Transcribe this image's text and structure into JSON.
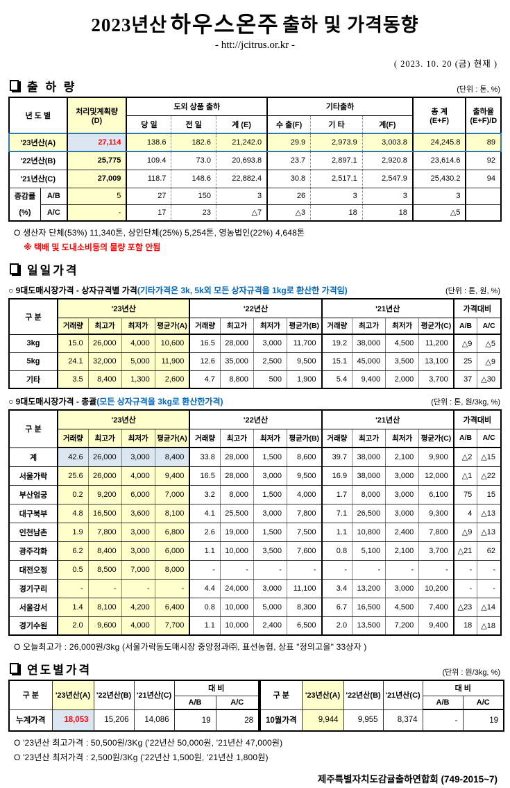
{
  "colors": {
    "highlight_yellow": "#FFFFCC",
    "highlight_blue_cell": "#DCE6F1",
    "red_value": "#FF0000",
    "blue_text": "#0068C0",
    "highlight_row_border": "#2E75B6"
  },
  "header": {
    "title_year": "2023년산",
    "title_product": "하우스온주",
    "title_rest": "출하 및 가격동향",
    "url": "- htt://jcitrus.or.kr -",
    "date": "( 2023.  10.  20 (금) 현재 )"
  },
  "shipment": {
    "section_title": "출 하 량",
    "unit": "(단위 : 톤, %)",
    "headers": {
      "year": "년 도 별",
      "plan": "처리및계획량",
      "plan_sub": "(D)",
      "out_group": "도외 상품 출하",
      "out_day": "당 일",
      "out_prev": "전 일",
      "out_sum": "계 (E)",
      "etc_group": "기타출하",
      "etc_export": "수 출(F)",
      "etc_other": "기 타",
      "etc_sum": "계(F)",
      "total": "총    계",
      "total_sub": "(E+F)",
      "rate": "출하율",
      "rate_sub": "(E+F)/D"
    },
    "rows": [
      {
        "label": "'23년산(A)",
        "highlight": true,
        "values": [
          "27,114",
          "138.6",
          "182.6",
          "21,242.0",
          "29.9",
          "2,973.9",
          "3,003.8",
          "24,245.8",
          "89"
        ]
      },
      {
        "label": "'22년산(B)",
        "highlight": false,
        "values": [
          "25,775",
          "109.4",
          "73.0",
          "20,693.8",
          "23.7",
          "2,897.1",
          "2,920.8",
          "23,614.6",
          "92"
        ]
      },
      {
        "label": "'21년산(C)",
        "highlight": false,
        "values": [
          "27,009",
          "118.7",
          "148.6",
          "22,882.4",
          "30.8",
          "2,517.1",
          "2,547.9",
          "25,430.2",
          "94"
        ]
      }
    ],
    "change_rows": [
      {
        "group": "증감률",
        "label": "A/B",
        "values": [
          "5",
          "27",
          "150",
          "3",
          "26",
          "3",
          "3",
          "3",
          ""
        ]
      },
      {
        "group": "(%)",
        "label": "A/C",
        "values": [
          "-",
          "17",
          "23",
          "△7",
          "△3",
          "18",
          "18",
          "△5",
          ""
        ]
      }
    ],
    "note": "O 생산자 단체(53%) 11,340톤, 상인단체(25%) 5,254톤, 영농법인(22%) 4,648톤",
    "note_red": "※ 택배 및 도내소비등의 물량 포함 안됨"
  },
  "price_headers": {
    "gubun": "구  분",
    "g23": "'23년산",
    "g22": "'22년산",
    "g21": "'21년산",
    "daebi": "가격대비",
    "sub": [
      "거래량",
      "최고가",
      "최저가",
      "평균가(A)",
      "거래량",
      "최고가",
      "최저가",
      "평균가(B)",
      "거래량",
      "최고가",
      "최저가",
      "평균가(C)",
      "A/B",
      "A/C"
    ]
  },
  "daily": {
    "section_title": "일일가격",
    "sub1": "○ 9대도매시장가격 - 상자규격별 가격",
    "sub1_blue": "(기타가격은 3k, 5k외 모든 상자규격을 1kg로 환산한 가격임)",
    "unit1": "(단위 : 톤,  원, %)",
    "box_rows": [
      {
        "label": "3kg",
        "values": [
          "15.0",
          "26,000",
          "4,000",
          "10,600",
          "16.5",
          "28,000",
          "3,000",
          "11,700",
          "19.2",
          "38,000",
          "4,500",
          "11,200",
          "△9",
          "△5"
        ]
      },
      {
        "label": "5kg",
        "values": [
          "24.1",
          "32,000",
          "5,000",
          "11,900",
          "12.6",
          "35,000",
          "2,500",
          "9,500",
          "15.1",
          "45,000",
          "3,500",
          "13,100",
          "25",
          "△9"
        ]
      },
      {
        "label": "기타",
        "values": [
          "3.5",
          "8,400",
          "1,300",
          "2,600",
          "4.7",
          "8,800",
          "500",
          "1,900",
          "5.4",
          "9,400",
          "2,000",
          "3,700",
          "37",
          "△30"
        ]
      }
    ],
    "sub2": "○ 9대도매시장가격 - 총괄",
    "sub2_blue": "(모든 상자규격을 3kg로 환산한가격)",
    "unit2": "(단위 : 톤, 원/3kg, %)",
    "summary_rows": [
      {
        "label": "계",
        "blue": true,
        "values": [
          "42.6",
          "26,000",
          "3,000",
          "8,400",
          "33.8",
          "28,000",
          "1,500",
          "8,600",
          "39.7",
          "38,000",
          "2,100",
          "9,900",
          "△2",
          "△15"
        ]
      },
      {
        "label": "서울가락",
        "blue": false,
        "values": [
          "25.6",
          "26,000",
          "4,000",
          "9,400",
          "16.5",
          "28,000",
          "3,000",
          "9,500",
          "16.9",
          "38,000",
          "3,000",
          "12,000",
          "△1",
          "△22"
        ]
      },
      {
        "label": "부산엄궁",
        "blue": false,
        "values": [
          "0.2",
          "9,200",
          "6,000",
          "7,000",
          "3.2",
          "8,000",
          "1,500",
          "4,000",
          "1.7",
          "8,000",
          "3,000",
          "6,100",
          "75",
          "15"
        ]
      },
      {
        "label": "대구북부",
        "blue": false,
        "values": [
          "4.8",
          "16,500",
          "3,600",
          "8,100",
          "4.1",
          "25,500",
          "3,000",
          "7,800",
          "7.1",
          "26,500",
          "3,000",
          "9,300",
          "4",
          "△13"
        ]
      },
      {
        "label": "인천남촌",
        "blue": false,
        "values": [
          "1.9",
          "7,800",
          "3,000",
          "6,800",
          "2.6",
          "19,000",
          "1,500",
          "7,500",
          "1.1",
          "10,800",
          "2,400",
          "7,800",
          "△9",
          "△13"
        ]
      },
      {
        "label": "광주각화",
        "blue": false,
        "values": [
          "6.2",
          "8,400",
          "3,000",
          "6,000",
          "1.1",
          "10,000",
          "3,500",
          "7,600",
          "0.8",
          "5,100",
          "2,100",
          "3,700",
          "△21",
          "62"
        ]
      },
      {
        "label": "대전오정",
        "blue": false,
        "values": [
          "0.5",
          "8,500",
          "7,000",
          "8,000",
          "-",
          "-",
          "-",
          "-",
          "-",
          "-",
          "-",
          "-",
          "-",
          "-"
        ]
      },
      {
        "label": "경기구리",
        "blue": false,
        "values": [
          "-",
          "-",
          "-",
          "-",
          "4.4",
          "24,000",
          "3,000",
          "11,100",
          "3.4",
          "13,200",
          "3,000",
          "10,200",
          "-",
          "-"
        ]
      },
      {
        "label": "서울강서",
        "blue": false,
        "values": [
          "1.4",
          "8,100",
          "4,200",
          "6,400",
          "0.8",
          "10,000",
          "5,000",
          "8,300",
          "6.7",
          "16,500",
          "4,500",
          "7,400",
          "△23",
          "△14"
        ]
      },
      {
        "label": "경기수원",
        "blue": false,
        "values": [
          "2.0",
          "9,600",
          "4,000",
          "7,700",
          "1.1",
          "10,000",
          "2,400",
          "6,500",
          "2.0",
          "13,500",
          "7,200",
          "9,400",
          "18",
          "△18"
        ]
      }
    ],
    "note_max": "O 오늘최고가 : 26,000원/3kg (서울가락동도매시장 중앙청과㈜, 표선농협, 상표 \"정의고을\" 33상자 )"
  },
  "yearly": {
    "section_title": "연도별가격",
    "unit": "(단위 : 원/3kg, %)",
    "headers": {
      "gubun": "구   분",
      "y23": "'23년산(A)",
      "y22": "'22년산(B)",
      "y21": "'21년산(C)",
      "daebi": "대    비",
      "ab": "A/B",
      "ac": "A/C"
    },
    "left_row": {
      "label": "누계가격",
      "values": [
        "18,053",
        "15,206",
        "14,086",
        "19",
        "28"
      ]
    },
    "right_row": {
      "label": "10월가격",
      "values": [
        "9,944",
        "9,955",
        "8,374",
        "-",
        "19"
      ]
    },
    "note1": "O '23년산 최고가격 : 50,500원/3Kg ('22년산 50,000원, '21년산 47,000원)",
    "note2": "O '23년산 최저가격 :  2,500원/3Kg ('22년산  1,500원, '21년산  1,800원)"
  },
  "footer": "제주특별자치도감귤출하연합회 (749-2015~7)"
}
